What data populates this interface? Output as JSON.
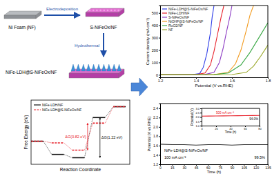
{
  "diagram": {
    "nodes": [
      {
        "label": "Ni Foam (NF)"
      },
      {
        "label": "S-NiFeOx/NF"
      },
      {
        "label": "NiFe-LDH@S-NiFeOx/NF"
      }
    ],
    "edges": [
      {
        "label": "Electrodeposition"
      },
      {
        "label": "Hydrothermal"
      }
    ]
  },
  "chart_data": [
    {
      "type": "line",
      "x_label": "Potential (V vs.RHE)",
      "y_label": "Current density (mA cm⁻²)",
      "xlim": [
        1.2,
        1.8
      ],
      "xticks": [
        1.2,
        1.4,
        1.6,
        1.8
      ],
      "ylim": [
        -20,
        560
      ],
      "yticks": [
        0,
        100,
        200,
        300,
        400,
        500
      ],
      "legend": "upper left",
      "series": [
        {
          "name": "NiFe-LDH@S-NiFeOx/NF",
          "color": "#2f3ee8",
          "x": [
            1.2,
            1.38,
            1.42,
            1.44,
            1.46,
            1.48,
            1.49,
            1.5
          ],
          "values": [
            0,
            2,
            10,
            60,
            170,
            340,
            470,
            560
          ]
        },
        {
          "name": "NiFe-LDH/NF",
          "color": "#e8202a",
          "x": [
            1.2,
            1.4,
            1.45,
            1.48,
            1.5,
            1.52,
            1.54,
            1.555
          ],
          "values": [
            0,
            2,
            15,
            80,
            190,
            330,
            470,
            560
          ]
        },
        {
          "name": "S-NiFeOx/NF",
          "color": "#8e3fc4",
          "x": [
            1.2,
            1.45,
            1.5,
            1.53,
            1.55,
            1.57,
            1.59,
            1.6
          ],
          "values": [
            0,
            3,
            20,
            100,
            210,
            350,
            480,
            560
          ]
        },
        {
          "name": "NiOHF@S-NiFeOx/NF",
          "color": "#f29a1d",
          "x": [
            1.2,
            1.5,
            1.58,
            1.62,
            1.65,
            1.68,
            1.7,
            1.72
          ],
          "values": [
            0,
            2,
            20,
            90,
            200,
            360,
            480,
            560
          ]
        },
        {
          "name": "RuO2/NF",
          "color": "#3aa845",
          "x": [
            1.2,
            1.5,
            1.58,
            1.65,
            1.7,
            1.75,
            1.8
          ],
          "values": [
            0,
            2,
            15,
            80,
            180,
            300,
            420
          ]
        },
        {
          "name": "NF",
          "color": "#9aa82a",
          "x": [
            1.2,
            1.6,
            1.68,
            1.72,
            1.76,
            1.8
          ],
          "values": [
            0,
            2,
            20,
            70,
            150,
            240
          ]
        }
      ]
    },
    {
      "type": "line",
      "x_label": "Time (h)",
      "y_label": "Potential (V vs.RHE)",
      "xlim": [
        0,
        135
      ],
      "xticks": [
        0,
        15,
        30,
        45,
        60,
        75,
        90,
        105,
        120,
        135
      ],
      "ylim": [
        1.2,
        2.5
      ],
      "yticks": [
        1.2,
        1.4,
        1.6,
        1.8,
        {
          "value": 2,
          "label": "2.0"
        },
        2.2,
        2.4
      ],
      "x": [
        0,
        15,
        30,
        45,
        60,
        75,
        90,
        105,
        120,
        135
      ],
      "series": [
        {
          "name": "NiFe-LDH@S-NiFeOx/NF",
          "color": "#333333",
          "values": [
            1.63,
            1.62,
            1.62,
            1.61,
            1.62,
            1.62,
            1.61,
            1.62,
            1.62,
            1.62
          ]
        }
      ],
      "annotations": [
        "100 mA cm⁻²",
        "99.5%"
      ]
    },
    {
      "type": "line",
      "x_label": "Time (h)",
      "y_label": "Potential (V)",
      "xlim": [
        0,
        80
      ],
      "xticks": [
        0,
        20,
        40,
        60,
        80
      ],
      "ylim": [
        1,
        3
      ],
      "yticks": [
        {
          "value": 1,
          "label": "1.0"
        },
        1.5,
        {
          "value": 2,
          "label": "2.0"
        },
        2.5,
        {
          "value": 3,
          "label": "3.0"
        }
      ],
      "x": [
        0,
        10,
        20,
        30,
        40,
        50,
        60,
        70,
        80
      ],
      "series": [
        {
          "color": "#e8202a",
          "values": [
            2.1,
            2.11,
            2.12,
            2.13,
            2.14,
            2.15,
            2.16,
            2.17,
            2.18
          ]
        }
      ],
      "annotations": [
        "500 mA cm⁻²",
        "94.0%"
      ]
    },
    {
      "type": "step",
      "x_label": "Reaction Coordinate",
      "y_label": "Free Energy (eV)",
      "x": [
        0,
        1,
        2,
        3,
        4
      ],
      "xlim": [
        0,
        4.8
      ],
      "ylim": [
        -1.75,
        0.2
      ],
      "tick_labels": false,
      "legend": "upper left",
      "series": [
        {
          "name": "NiFe-LDH/NF",
          "color": "#111111",
          "line_style": "solid",
          "values": [
            -1.05,
            -1.45,
            -1.55,
            -0.33,
            0
          ]
        },
        {
          "name": "NiFe-LDH@S-NiFeOx/NF",
          "color": "#e8202a",
          "line_style": "dashed",
          "values": [
            -1.05,
            -1.1,
            -1.32,
            -0.5,
            0
          ]
        }
      ],
      "annotations": [
        {
          "text": "ΔG(0.82 eV)",
          "series": 1,
          "from_state": 2,
          "to_state": 3
        },
        {
          "text": "ΔG(1.22 eV)",
          "series": 0,
          "from_state": 2,
          "to_state": 3
        }
      ]
    }
  ]
}
